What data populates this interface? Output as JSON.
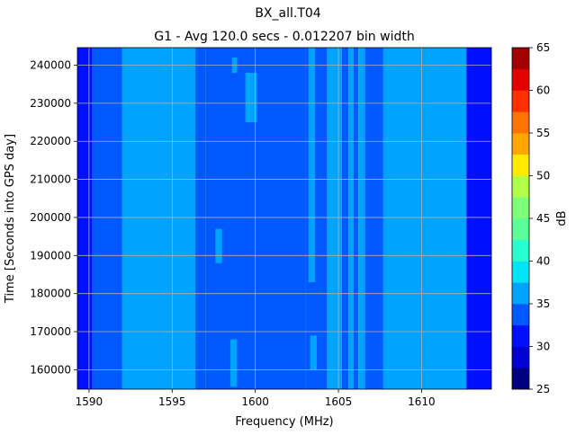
{
  "chart_data": {
    "type": "heatmap",
    "title": "BX_all.T04",
    "subtitle": "G1 - Avg 120.0 secs - 0.012207 bin width",
    "xlabel": "Frequency (MHz)",
    "ylabel": "Time [Seconds into GPS day]",
    "xlim": [
      1589.3,
      1614.2
    ],
    "ylim": [
      154900,
      244600
    ],
    "x_ticks": [
      1590,
      1595,
      1600,
      1605,
      1610
    ],
    "y_ticks": [
      160000,
      170000,
      180000,
      190000,
      200000,
      210000,
      220000,
      230000,
      240000
    ],
    "grid": true,
    "colorbar": {
      "label": "dB",
      "range": [
        25,
        65
      ],
      "ticks": [
        25,
        30,
        35,
        40,
        45,
        50,
        55,
        60,
        65
      ],
      "levels": [
        {
          "lo": 25.0,
          "hi": 27.5,
          "color": "#00007f"
        },
        {
          "lo": 27.5,
          "hi": 30.0,
          "color": "#0000d1"
        },
        {
          "lo": 30.0,
          "hi": 32.5,
          "color": "#0010ff"
        },
        {
          "lo": 32.5,
          "hi": 35.0,
          "color": "#0058ff"
        },
        {
          "lo": 35.0,
          "hi": 37.5,
          "color": "#00a4ff"
        },
        {
          "lo": 37.5,
          "hi": 40.0,
          "color": "#00e4f8"
        },
        {
          "lo": 40.0,
          "hi": 42.5,
          "color": "#29ffce"
        },
        {
          "lo": 42.5,
          "hi": 45.0,
          "color": "#5aff9a"
        },
        {
          "lo": 45.0,
          "hi": 47.5,
          "color": "#7dff7a"
        },
        {
          "lo": 47.5,
          "hi": 50.0,
          "color": "#b1ff46"
        },
        {
          "lo": 50.0,
          "hi": 52.5,
          "color": "#ffea00"
        },
        {
          "lo": 52.5,
          "hi": 55.0,
          "color": "#ffa600"
        },
        {
          "lo": 55.0,
          "hi": 57.5,
          "color": "#ff7300"
        },
        {
          "lo": 57.5,
          "hi": 60.0,
          "color": "#ff3000"
        },
        {
          "lo": 60.0,
          "hi": 62.5,
          "color": "#e30000"
        },
        {
          "lo": 62.5,
          "hi": 65.0,
          "color": "#a00000"
        }
      ]
    },
    "bands": [
      {
        "x0": 1589.3,
        "x1": 1590.2,
        "db": 31
      },
      {
        "x0": 1590.2,
        "x1": 1592.0,
        "db": 34
      },
      {
        "x0": 1592.0,
        "x1": 1596.0,
        "db": 36
      },
      {
        "x0": 1596.0,
        "x1": 1597.0,
        "db": 34
      },
      {
        "x0": 1597.0,
        "x1": 1603.0,
        "db": 34
      },
      {
        "x0": 1603.0,
        "x1": 1604.8,
        "db": 34
      },
      {
        "x0": 1604.8,
        "x1": 1605.2,
        "db": 36
      },
      {
        "x0": 1605.2,
        "x1": 1605.6,
        "db": 34
      },
      {
        "x0": 1605.6,
        "x1": 1605.9,
        "db": 36
      },
      {
        "x0": 1605.9,
        "x1": 1606.2,
        "db": 34
      },
      {
        "x0": 1606.2,
        "x1": 1606.6,
        "db": 36
      },
      {
        "x0": 1606.6,
        "x1": 1607.7,
        "db": 34
      },
      {
        "x0": 1607.7,
        "x1": 1612.7,
        "db": 36
      },
      {
        "x0": 1612.7,
        "x1": 1614.2,
        "db": 31
      }
    ],
    "features": [
      {
        "x0": 1596.0,
        "x1": 1596.4,
        "y0": 154900,
        "y1": 244600,
        "db": 36
      },
      {
        "x0": 1597.6,
        "x1": 1598.0,
        "y0": 188000,
        "y1": 197000,
        "db": 36
      },
      {
        "x0": 1598.5,
        "x1": 1598.9,
        "y0": 155500,
        "y1": 168000,
        "db": 36
      },
      {
        "x0": 1598.6,
        "x1": 1598.9,
        "y0": 238000,
        "y1": 242000,
        "db": 36
      },
      {
        "x0": 1599.4,
        "x1": 1600.1,
        "y0": 225000,
        "y1": 238000,
        "db": 36
      },
      {
        "x0": 1603.2,
        "x1": 1603.6,
        "y0": 183000,
        "y1": 244600,
        "db": 36
      },
      {
        "x0": 1603.3,
        "x1": 1603.7,
        "y0": 160000,
        "y1": 169000,
        "db": 36
      },
      {
        "x0": 1604.3,
        "x1": 1604.8,
        "y0": 154900,
        "y1": 244600,
        "db": 36
      },
      {
        "x0": 1607.7,
        "x1": 1608.0,
        "y0": 154900,
        "y1": 244600,
        "db": 37
      },
      {
        "x0": 1610.1,
        "x1": 1610.4,
        "y0": 212000,
        "y1": 220000,
        "db": 37
      }
    ]
  }
}
